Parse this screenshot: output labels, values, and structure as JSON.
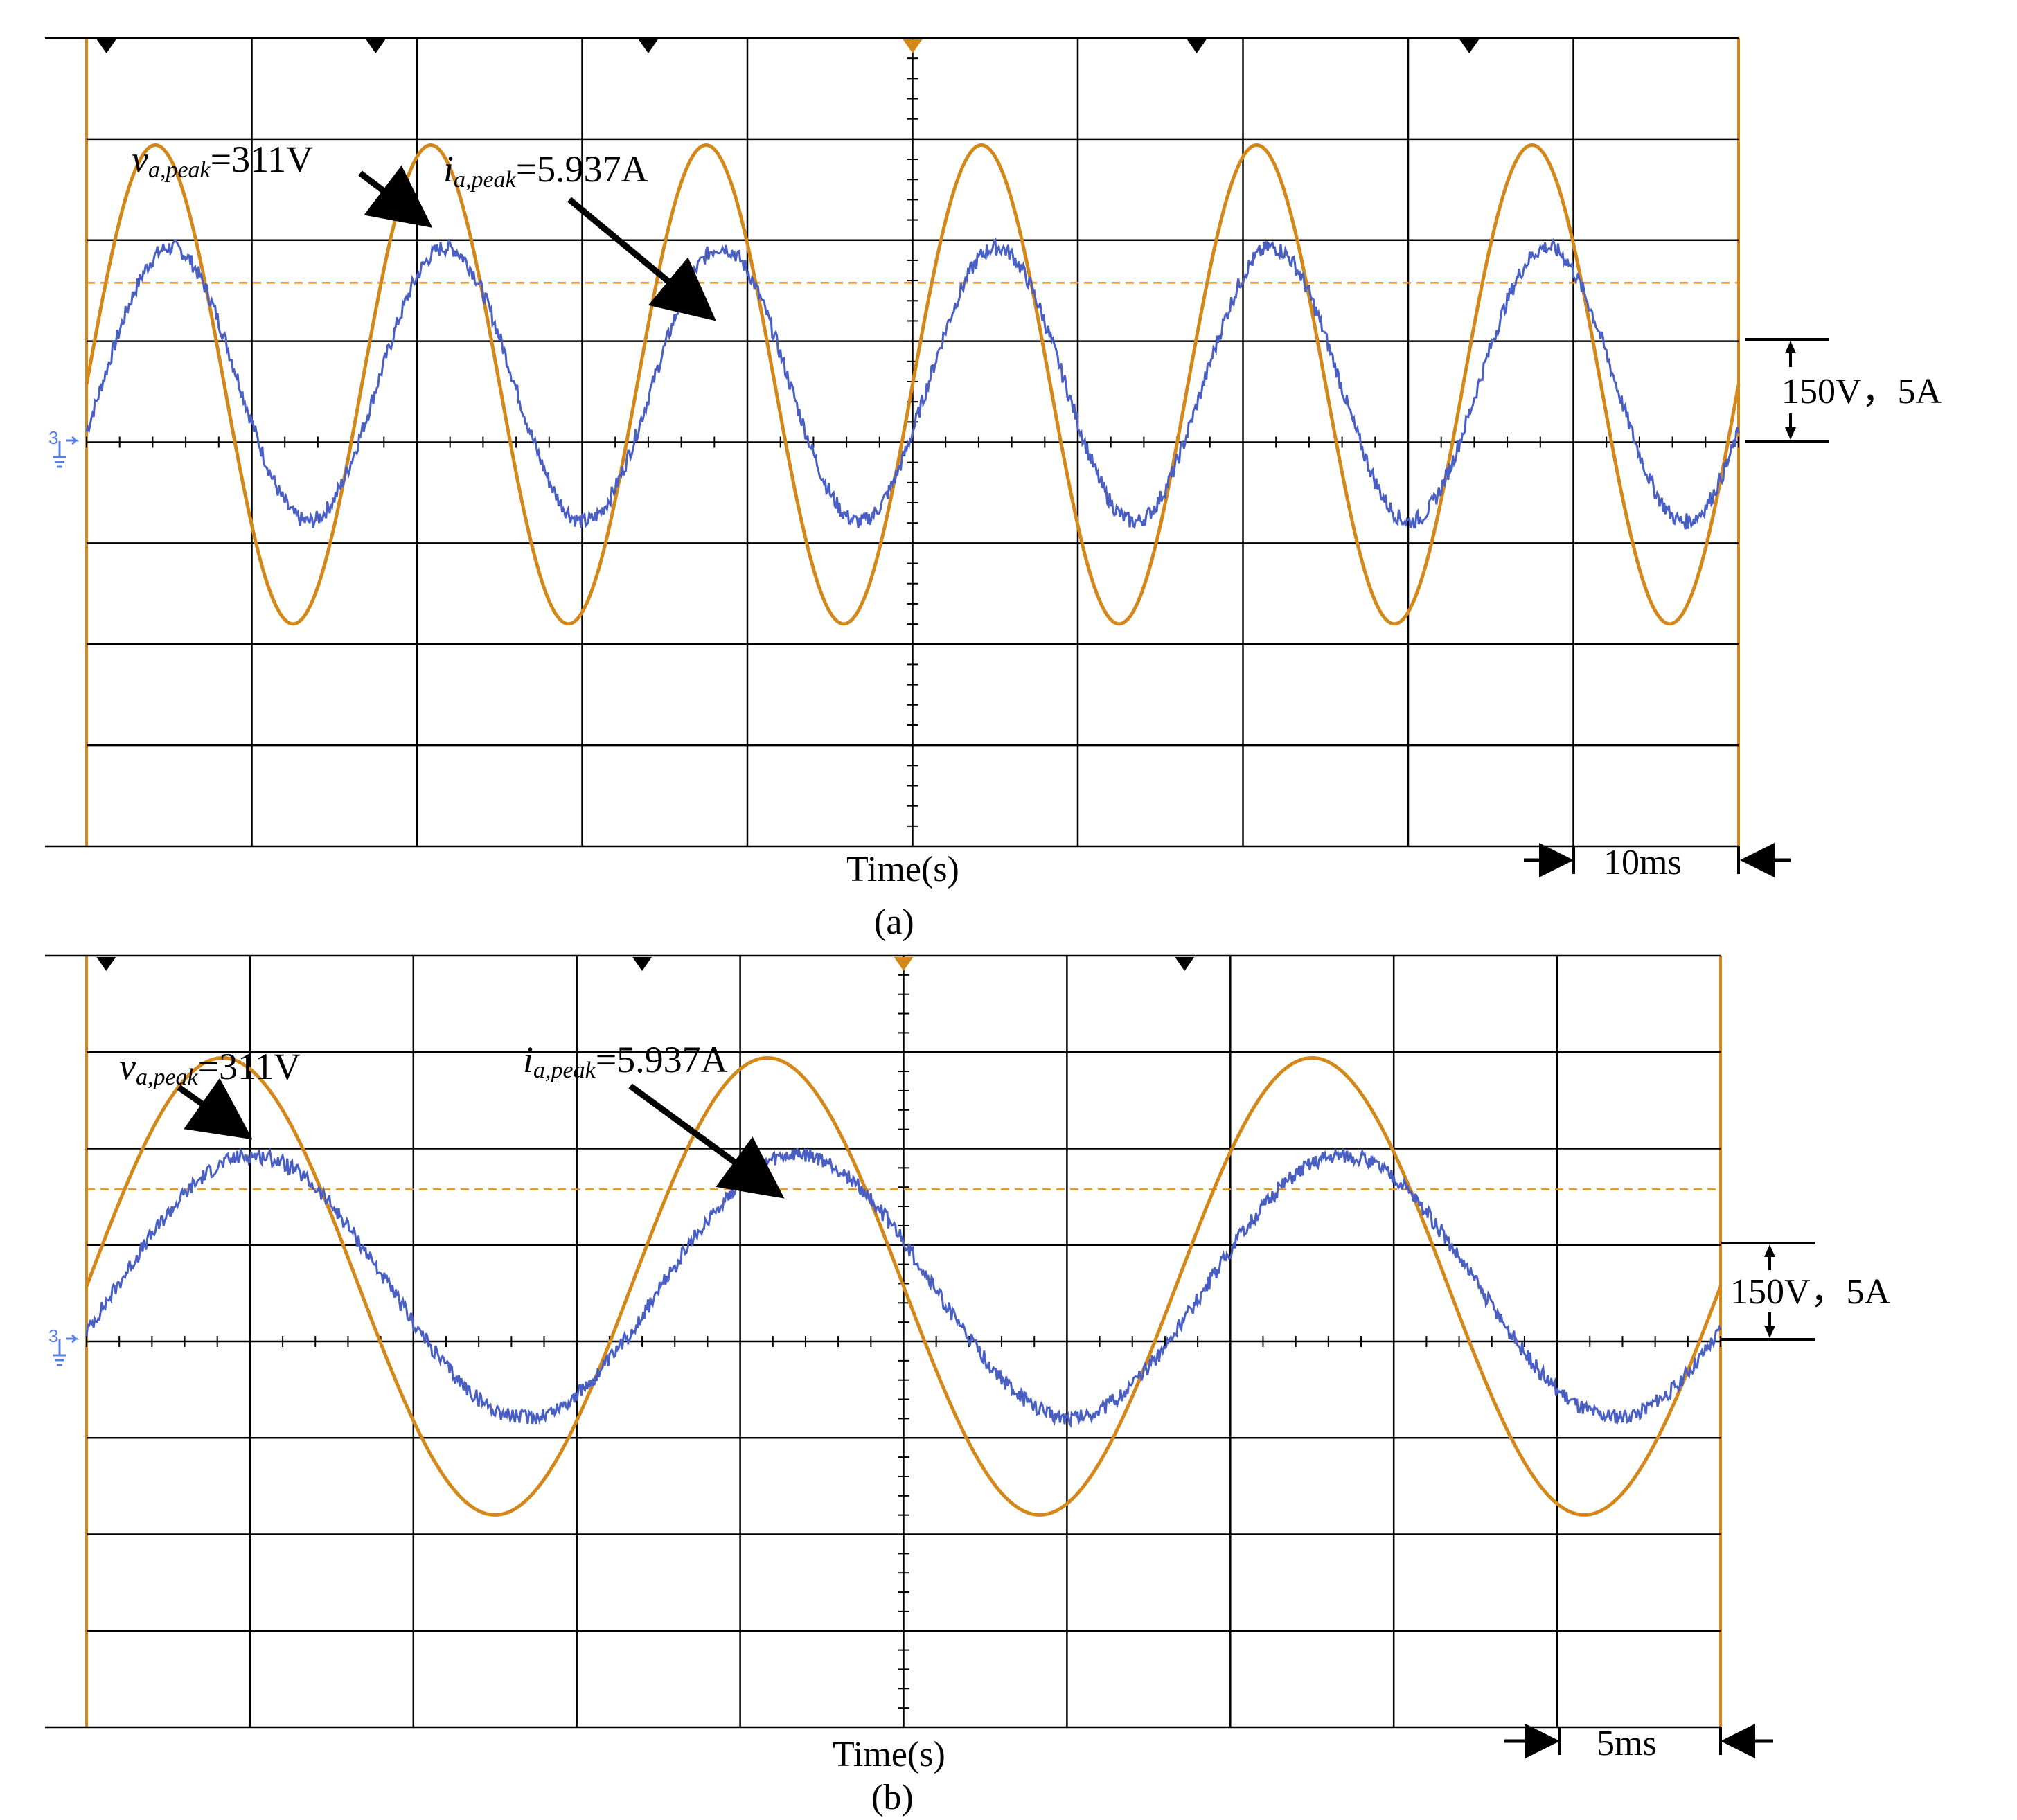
{
  "figure": {
    "panels": [
      {
        "panel_label": "(a)",
        "xlabel": "Time(s)",
        "time_scale_label": "10ms",
        "scale_label": "150V，5A",
        "voltage_annotation": {
          "symbol": "v",
          "subscript": "a,peak",
          "value": "=311V"
        },
        "current_annotation": {
          "symbol": "i",
          "subscript": "a,peak",
          "value": "=5.937A"
        },
        "channel_marker": "3"
      },
      {
        "panel_label": "(b)",
        "xlabel": "Time(s)",
        "time_scale_label": "5ms",
        "scale_label": "150V，5A",
        "voltage_annotation": {
          "symbol": "v",
          "subscript": "a,peak",
          "value": "=311V"
        },
        "current_annotation": {
          "symbol": "i",
          "subscript": "a,peak",
          "value": "=5.937A"
        },
        "channel_marker": "3"
      }
    ]
  },
  "colors": {
    "voltage": "#d4881a",
    "current": "#4a5fc4",
    "grid": "#000000",
    "reference_dashed": "#e8921e",
    "marker_blue": "#5a7fe0"
  },
  "chart_data": [
    {
      "type": "line",
      "panel": "(a)",
      "xlabel": "Time(s)",
      "x_unit": "ms",
      "xlim": [
        0,
        100
      ],
      "x_division": 10,
      "y_division_voltage": 150,
      "y_division_current": 5,
      "ylim_voltage": [
        -600,
        450
      ],
      "ylim_current": [
        -20,
        15
      ],
      "grid": true,
      "series": [
        {
          "name": "va",
          "unit": "V",
          "waveform": "sine",
          "peak": 311,
          "frequency_hz": 60,
          "phase_deg": 0,
          "y_offset": 0,
          "noise": 0
        },
        {
          "name": "ia",
          "unit": "A",
          "waveform": "sine",
          "peak": 5.937,
          "frequency_hz": 60,
          "phase_deg": -20,
          "y_offset": 0,
          "noise": 0.35
        }
      ],
      "reference_line": {
        "axis": "current",
        "value": 4.4,
        "style": "dashed"
      }
    },
    {
      "type": "line",
      "panel": "(b)",
      "xlabel": "Time(s)",
      "x_unit": "ms",
      "xlim": [
        0,
        50
      ],
      "x_division": 5,
      "y_division_voltage": 150,
      "y_division_current": 5,
      "ylim_voltage": [
        -600,
        450
      ],
      "ylim_current": [
        -20,
        15
      ],
      "grid": true,
      "series": [
        {
          "name": "va",
          "unit": "V",
          "waveform": "sine",
          "peak": 311,
          "frequency_hz": 60,
          "phase_deg": 0,
          "y_offset": 0,
          "noise": 0
        },
        {
          "name": "ia",
          "unit": "A",
          "waveform": "sine",
          "peak": 5.937,
          "frequency_hz": 60,
          "phase_deg": -20,
          "y_offset": 0,
          "noise": 0.35
        }
      ],
      "reference_line": {
        "axis": "current",
        "value": 4.4,
        "style": "dashed"
      }
    }
  ]
}
